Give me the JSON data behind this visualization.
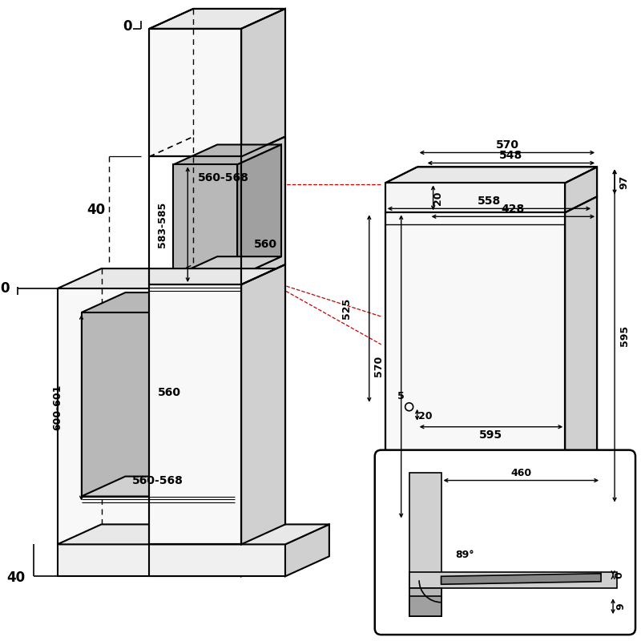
{
  "bg_color": "#ffffff",
  "lc": "#000000",
  "red": "#cc0000",
  "gray_dark": "#a0a0a0",
  "gray_mid": "#b8b8b8",
  "gray_light": "#d0d0d0",
  "gray_xlight": "#e8e8e8",
  "annotations": {
    "top_0": "0",
    "left_40_top": "40",
    "left_0": "0",
    "left_40_bot": "40",
    "mid_583_585": "583-585",
    "mid_560_568_top": "560-568",
    "mid_560_top": "560",
    "mid_600_601": "600-601",
    "mid_560_bot": "560",
    "mid_560_568_bot": "560-568",
    "right_570": "570",
    "right_548": "548",
    "right_558": "558",
    "right_428": "428",
    "right_20_top": "20",
    "right_97": "97",
    "right_525": "525",
    "right_570b": "570",
    "right_595_side": "595",
    "right_5": "5",
    "right_20_bot": "20",
    "right_595_bot": "595",
    "inset_460": "460",
    "inset_89": "89°",
    "inset_0": "0",
    "inset_9": "9"
  }
}
